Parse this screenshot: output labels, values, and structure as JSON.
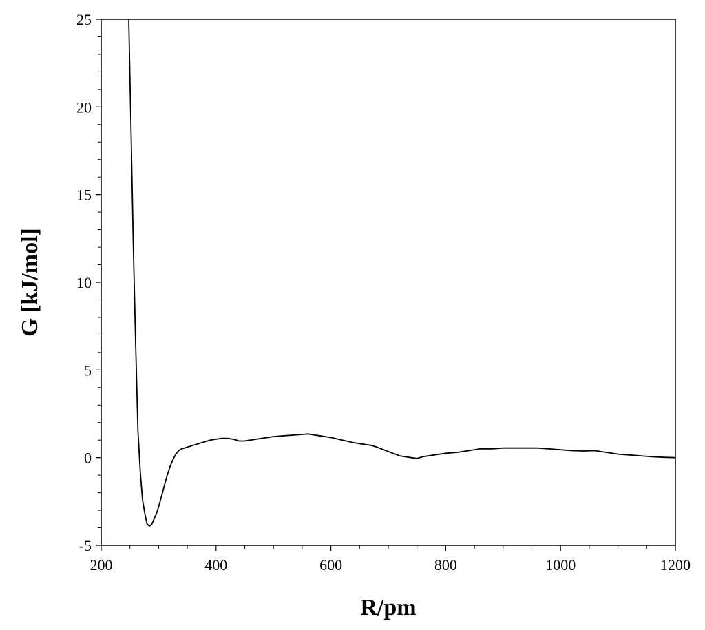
{
  "chart_data": {
    "type": "line",
    "title": "",
    "xlabel": "R/pm",
    "ylabel": "G  [kJ/mol]",
    "xlim": [
      200,
      1200
    ],
    "ylim": [
      -5,
      25
    ],
    "xticks": [
      200,
      400,
      600,
      800,
      1000,
      1200
    ],
    "yticks": [
      -5,
      0,
      5,
      10,
      15,
      20,
      25
    ],
    "xtick_labels": [
      "200",
      "400",
      "600",
      "800",
      "1000",
      "1200"
    ],
    "ytick_labels": [
      "-5",
      "0",
      "5",
      "10",
      "15",
      "20",
      "25"
    ],
    "grid": false,
    "legend": "none",
    "line_color": "#000000",
    "series": [
      {
        "x": [
          248,
          252,
          256,
          260,
          264,
          268,
          272,
          276,
          280,
          284,
          288,
          292,
          296,
          300,
          305,
          310,
          315,
          320,
          325,
          330,
          335,
          340,
          345,
          350,
          355,
          360,
          370,
          380,
          390,
          400,
          410,
          420,
          430,
          440,
          450,
          460,
          470,
          480,
          490,
          500,
          520,
          540,
          560,
          570,
          580,
          590,
          600,
          620,
          640,
          660,
          670,
          680,
          700,
          720,
          740,
          750,
          760,
          780,
          800,
          820,
          840,
          860,
          880,
          900,
          920,
          940,
          960,
          980,
          1000,
          1020,
          1040,
          1060,
          1080,
          1100,
          1120,
          1140,
          1160,
          1180,
          1200
        ],
        "y": [
          25.0,
          18.5,
          12.0,
          6.5,
          1.5,
          -0.8,
          -2.4,
          -3.2,
          -3.8,
          -3.9,
          -3.8,
          -3.5,
          -3.2,
          -2.8,
          -2.2,
          -1.6,
          -1.0,
          -0.5,
          -0.1,
          0.2,
          0.4,
          0.5,
          0.55,
          0.6,
          0.65,
          0.7,
          0.8,
          0.9,
          1.0,
          1.05,
          1.1,
          1.1,
          1.05,
          0.95,
          0.95,
          1.0,
          1.05,
          1.1,
          1.15,
          1.2,
          1.25,
          1.3,
          1.35,
          1.3,
          1.25,
          1.2,
          1.15,
          1.0,
          0.85,
          0.75,
          0.7,
          0.6,
          0.35,
          0.1,
          0.0,
          -0.05,
          0.05,
          0.15,
          0.25,
          0.3,
          0.4,
          0.5,
          0.5,
          0.55,
          0.55,
          0.55,
          0.55,
          0.5,
          0.45,
          0.4,
          0.38,
          0.4,
          0.3,
          0.2,
          0.15,
          0.1,
          0.05,
          0.02,
          0.0
        ]
      }
    ]
  }
}
